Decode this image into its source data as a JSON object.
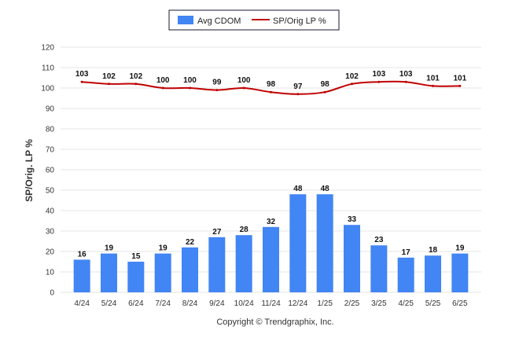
{
  "chart_data": {
    "type": "bar",
    "categories": [
      "4/24",
      "5/24",
      "6/24",
      "7/24",
      "8/24",
      "9/24",
      "10/24",
      "11/24",
      "12/24",
      "1/25",
      "2/25",
      "3/25",
      "4/25",
      "5/25",
      "6/25"
    ],
    "series": [
      {
        "name": "Avg CDOM",
        "type": "bar",
        "color": "#4285f4",
        "values": [
          16,
          19,
          15,
          19,
          22,
          27,
          28,
          32,
          48,
          48,
          33,
          23,
          17,
          18,
          19
        ]
      },
      {
        "name": "SP/Orig LP %",
        "type": "line",
        "color": "#c00000",
        "values": [
          103,
          102,
          102,
          100,
          100,
          99,
          100,
          98,
          97,
          98,
          102,
          103,
          103,
          101,
          101
        ]
      }
    ],
    "ylabel": "SP/Orig. LP %",
    "xlabel": "",
    "ylim": [
      0,
      120
    ],
    "yticks": [
      0,
      10,
      20,
      30,
      40,
      50,
      60,
      70,
      80,
      90,
      100,
      110,
      120
    ],
    "grid": true,
    "legend_position": "top-center"
  },
  "footer": {
    "copyright": "Copyright © Trendgraphix, Inc."
  }
}
